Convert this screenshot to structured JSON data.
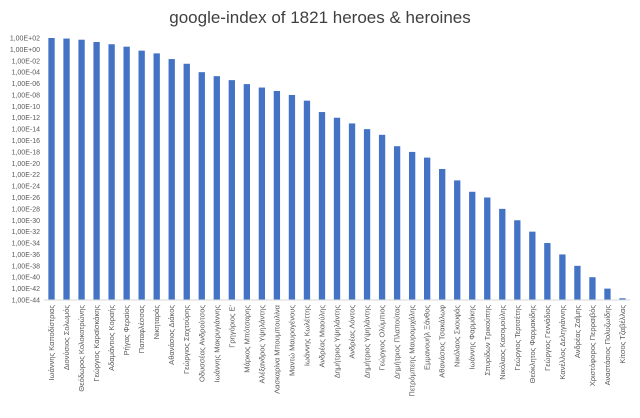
{
  "chart_data": {
    "type": "bar",
    "title": "google-index of 1821 heroes & heroines",
    "xlabel": "",
    "ylabel": "",
    "yscale": "log",
    "ylim": [
      1e-44,
      100
    ],
    "grid": false,
    "legend": "none",
    "bar_color": "#4472c4",
    "yticks": [
      "1,00E+02",
      "1,00E+00",
      "1,00E-02",
      "1,00E-04",
      "1,00E-06",
      "1,00E-08",
      "1,00E-10",
      "1,00E-12",
      "1,00E-14",
      "1,00E-16",
      "1,00E-18",
      "1,00E-20",
      "1,00E-22",
      "1,00E-24",
      "1,00E-26",
      "1,00E-28",
      "1,00E-30",
      "1,00E-32",
      "1,00E-34",
      "1,00E-36",
      "1,00E-38",
      "1,00E-40",
      "1,00E-42",
      "1,00E-44"
    ],
    "categories": [
      "Ιωάννης Καποδίστριας",
      "Διονύσιος Σολωμός",
      "Θεόδωρος Κολοκοτρώνης",
      "Γεώργιος Καραϊσκάκης",
      "Αδαμάντιος Κοραής",
      "Ρήγας Φεραίος",
      "Παπαφλέσσας",
      "Νικηταράς",
      "Αθανάσιος Διάκος",
      "Γεώργιος Σαχτούρης",
      "Οδυσσέας Ανδρούτσος",
      "Ιωάννης Μακρυγιάννης",
      "Γρηγόριος Ε'",
      "Μάρκος Μπότσαρης",
      "Αλέξανδρος Υψηλάντης",
      "Λασκαρίνα Μπουμπουλίνα",
      "Μαντώ Μαυρογένους",
      "Ιωάννης Κωλέττης",
      "Ανδρέας Μιαούλης",
      "Δημήτριος Υψηλάντης",
      "Ανδρέας Λόντος",
      "Δημήτριος Υψηλάντης",
      "Γεώργιος Ολύμπιος",
      "Δημήτριος Πλαπούτας",
      "Πετρόμπεης Μαυρομιχάλης",
      "Εμμανουήλ Ξάνθος",
      "Αθανάσιος Τσακάλωφ",
      "Νικόλαος Σκουφάς",
      "Ιωάννης Φαρμάκης",
      "Σπυρίδων Τρικούπης",
      "Νικόλαος Κασομούλης",
      "Γεώργιος Τερτσέτης",
      "Θεόκλητος Φαρμακίδης",
      "Γεώργιος Γεννάδιος",
      "Κανέλλος Δεληγιάννης",
      "Ανδρέας Ζαΐμης",
      "Χριστόφορος Περραιβός",
      "Αναστάσιος Πολυζωίδης",
      "Κίτσος Τζαβέλλας"
    ],
    "values": [
      100,
      80,
      50,
      20,
      8,
      3,
      0.6,
      0.2,
      0.02,
      0.003,
      0.0001,
      2e-05,
      4e-06,
      8e-07,
      2e-07,
      5e-08,
      1e-08,
      1e-09,
      1e-11,
      1e-12,
      1e-13,
      1e-14,
      1e-15,
      1e-17,
      1e-18,
      1e-19,
      1e-21,
      1e-23,
      1e-25,
      1e-26,
      1e-28,
      1e-30,
      1e-32,
      1e-34,
      1e-36,
      1e-38,
      1e-40,
      1e-42,
      2e-44
    ]
  }
}
